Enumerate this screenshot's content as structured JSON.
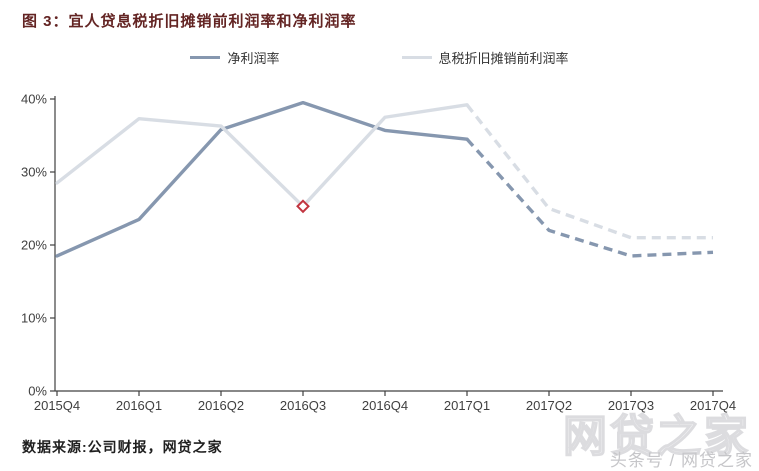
{
  "title": "图 3：宜人贷息税折旧摊销前利润率和净利润率",
  "source": "数据来源:公司财报，网贷之家",
  "watermark": {
    "logo_text": "网贷之家",
    "byline": "头条号 / 网贷之家"
  },
  "colors": {
    "title_text": "#632423",
    "net_margin_line": "#8697AF",
    "ebitda_line": "#D8DDE4",
    "highlight_marker": "#C23540",
    "axis": "#404040"
  },
  "chart_data": {
    "type": "line",
    "title": "图 3：宜人贷息税折旧摊销前利润率和净利润率",
    "categories": [
      "2015Q4",
      "2016Q1",
      "2016Q2",
      "2016Q3",
      "2016Q4",
      "2017Q1",
      "2017Q2",
      "2017Q3",
      "2017Q4"
    ],
    "series": [
      {
        "name": "净利润率",
        "color": "#8697AF",
        "values": [
          18.5,
          23.5,
          35.8,
          39.5,
          35.7,
          34.5,
          22.0,
          18.5,
          19.0
        ],
        "dashed_from_index": 5
      },
      {
        "name": "息税折旧摊销前利润率",
        "color": "#D8DDE4",
        "values": [
          28.5,
          37.3,
          36.3,
          25.3,
          37.5,
          39.2,
          25.0,
          21.0,
          21.0
        ],
        "dashed_from_index": 5
      }
    ],
    "marker": {
      "series_index": 1,
      "point_index": 3,
      "shape": "diamond",
      "color": "#C23540"
    },
    "xlabel": "",
    "ylabel": "",
    "ylim": [
      0,
      40
    ],
    "y_ticks": [
      "0%",
      "10%",
      "20%",
      "30%",
      "40%"
    ],
    "grid": false,
    "legend_position": "top"
  }
}
